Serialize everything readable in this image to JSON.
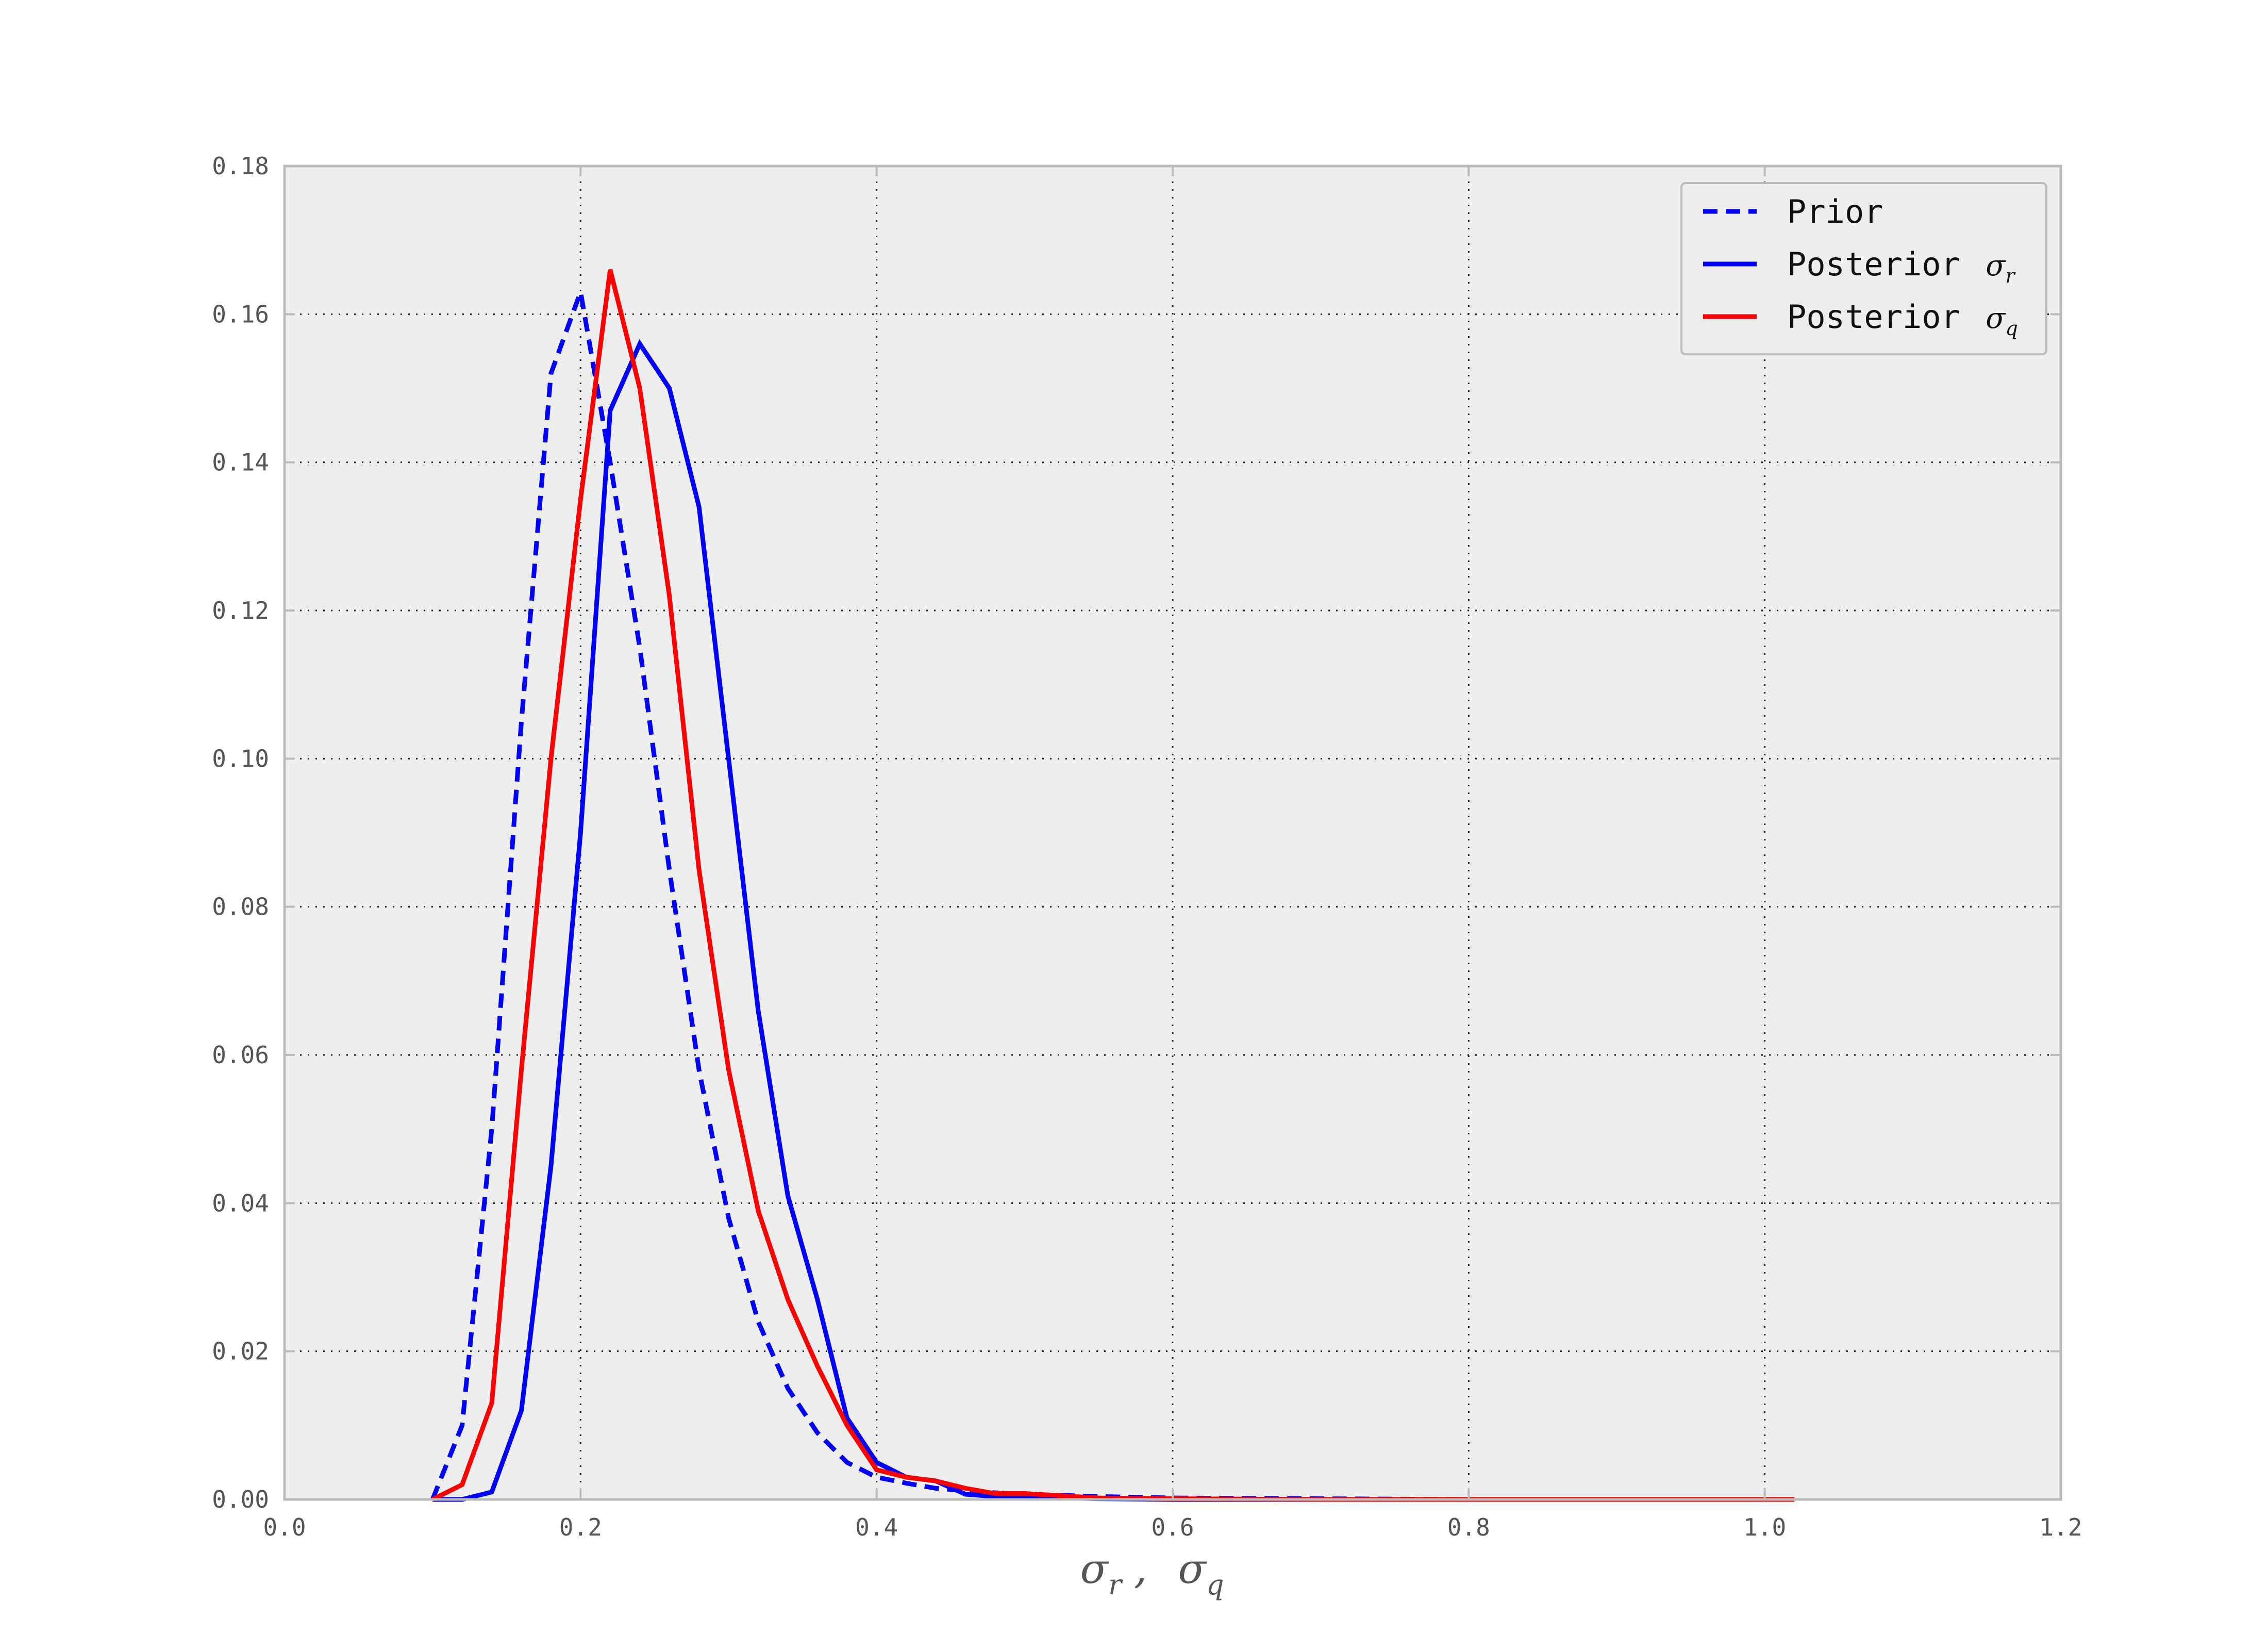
{
  "chart_data": {
    "type": "line",
    "title": "",
    "xlabel": "σr ,  σq",
    "xlabel_parts": {
      "sym1": "σ",
      "sub1": "r",
      "sep": ",",
      "sym2": "σ",
      "sub2": "q"
    },
    "ylabel": "",
    "xlim": [
      0.0,
      1.2
    ],
    "ylim": [
      0.0,
      0.18
    ],
    "xticks": [
      0.0,
      0.2,
      0.4,
      0.6,
      0.8,
      1.0,
      1.2
    ],
    "yticks": [
      0.0,
      0.02,
      0.04,
      0.06,
      0.08,
      0.1,
      0.12,
      0.14,
      0.16,
      0.18
    ],
    "xtick_labels": [
      "0.0",
      "0.2",
      "0.4",
      "0.6",
      "0.8",
      "1.0",
      "1.2"
    ],
    "ytick_labels": [
      "0.00",
      "0.02",
      "0.04",
      "0.06",
      "0.08",
      "0.10",
      "0.12",
      "0.14",
      "0.16",
      "0.18"
    ],
    "grid": true,
    "legend_position": "top-right",
    "colors": {
      "plot_background": "#eeeeee",
      "frame": "#bbbbbb",
      "grid": "#222222",
      "prior": "#0000ff",
      "posterior_r": "#0000ff",
      "posterior_q": "#ff0000"
    },
    "series": [
      {
        "name": "Prior",
        "legend_label": "Prior",
        "legend_symbol": "",
        "legend_sub": "",
        "color": "#0000ff",
        "style": "dashed",
        "x": [
          0.1,
          0.12,
          0.14,
          0.16,
          0.18,
          0.2,
          0.22,
          0.24,
          0.26,
          0.28,
          0.3,
          0.32,
          0.34,
          0.36,
          0.38,
          0.4,
          0.42,
          0.44,
          0.46,
          0.48,
          0.5,
          0.55,
          0.6,
          0.7,
          0.8,
          0.9,
          1.02
        ],
        "y": [
          0.0,
          0.01,
          0.05,
          0.105,
          0.152,
          0.163,
          0.14,
          0.115,
          0.085,
          0.058,
          0.038,
          0.024,
          0.015,
          0.009,
          0.005,
          0.003,
          0.0022,
          0.0015,
          0.0012,
          0.0009,
          0.0007,
          0.0004,
          0.0002,
          0.0001,
          0.0,
          0.0,
          0.0
        ]
      },
      {
        "name": "Posterior σr",
        "legend_label": "Posterior ",
        "legend_symbol": "σ",
        "legend_sub": "r",
        "color": "#0000ff",
        "style": "solid",
        "x": [
          0.1,
          0.12,
          0.14,
          0.16,
          0.18,
          0.2,
          0.22,
          0.24,
          0.26,
          0.28,
          0.3,
          0.32,
          0.34,
          0.36,
          0.38,
          0.4,
          0.42,
          0.44,
          0.46,
          0.48,
          0.5,
          0.55,
          0.6,
          0.7,
          0.8,
          0.9,
          1.02
        ],
        "y": [
          0.0,
          0.0,
          0.001,
          0.012,
          0.045,
          0.09,
          0.147,
          0.156,
          0.15,
          0.134,
          0.1,
          0.066,
          0.041,
          0.027,
          0.011,
          0.005,
          0.003,
          0.0025,
          0.0007,
          0.0004,
          0.0003,
          0.0001,
          0.0,
          0.0,
          0.0,
          0.0,
          0.0
        ]
      },
      {
        "name": "Posterior σq",
        "legend_label": "Posterior ",
        "legend_symbol": "σ",
        "legend_sub": "q",
        "color": "#ff0000",
        "style": "solid",
        "x": [
          0.1,
          0.12,
          0.14,
          0.16,
          0.18,
          0.2,
          0.22,
          0.24,
          0.26,
          0.28,
          0.3,
          0.32,
          0.34,
          0.36,
          0.38,
          0.4,
          0.42,
          0.44,
          0.46,
          0.48,
          0.5,
          0.55,
          0.6,
          0.7,
          0.8,
          0.9,
          1.02
        ],
        "y": [
          0.0,
          0.002,
          0.013,
          0.058,
          0.1,
          0.135,
          0.166,
          0.15,
          0.122,
          0.085,
          0.058,
          0.039,
          0.027,
          0.018,
          0.01,
          0.004,
          0.003,
          0.0025,
          0.0015,
          0.0008,
          0.0008,
          0.0002,
          0.0001,
          0.0,
          0.0,
          0.0,
          0.0
        ]
      }
    ]
  }
}
